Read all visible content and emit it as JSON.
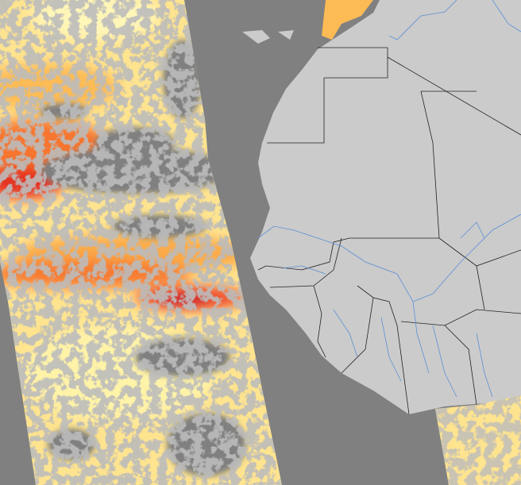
{
  "map": {
    "colors": {
      "ocean_nodata": "#808080",
      "land": "#cbcbcb",
      "border": "#222222",
      "river": "#5b8fd6",
      "low": "#fff3a8",
      "mid": "#fdbb55",
      "high": "#f2452b",
      "very_high": "#c8102e"
    }
  }
}
